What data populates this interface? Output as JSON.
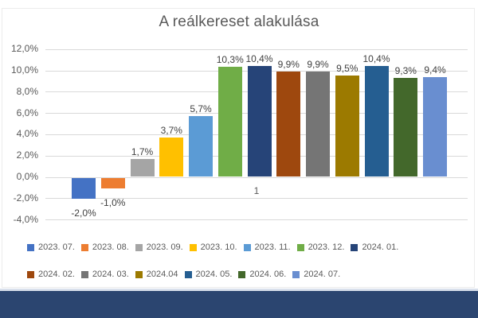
{
  "title": "A reálkereset alakulása",
  "colors": {
    "title_text": "#595959",
    "axis_text": "#595959",
    "data_label_text": "#404040",
    "gridline": "#D9D9D9",
    "footer_band": "#2B4570",
    "footer_top_line": "#D9E0EC",
    "chart_frame_border": "#ECECEC",
    "background": "#FFFFFF"
  },
  "chart_data": {
    "type": "bar",
    "title": "A reálkereset alakulása",
    "categories": [
      "1"
    ],
    "xlabel": "",
    "ylabel": "",
    "ylim": [
      -4,
      12
    ],
    "y_tick_step": 2,
    "grid": true,
    "legend_position": "bottom",
    "y_ticks": [
      {
        "value": 12,
        "label": "12,0%"
      },
      {
        "value": 10,
        "label": "10,0%"
      },
      {
        "value": 8,
        "label": "8,0%"
      },
      {
        "value": 6,
        "label": "6,0%"
      },
      {
        "value": 4,
        "label": "4,0%"
      },
      {
        "value": 2,
        "label": "2,0%"
      },
      {
        "value": 0,
        "label": "0,0%"
      },
      {
        "value": -2,
        "label": "-2,0%"
      },
      {
        "value": -4,
        "label": "-4,0%"
      }
    ],
    "series": [
      {
        "name": "2023. 07.",
        "value": -2.0,
        "label": "-2,0%",
        "color": "#4472C4"
      },
      {
        "name": "2023. 08.",
        "value": -1.0,
        "label": "-1,0%",
        "color": "#ED7D31"
      },
      {
        "name": "2023. 09.",
        "value": 1.7,
        "label": "1,7%",
        "color": "#A5A5A5"
      },
      {
        "name": "2023. 10.",
        "value": 3.7,
        "label": "3,7%",
        "color": "#FFC000"
      },
      {
        "name": "2023. 11.",
        "value": 5.7,
        "label": "5,7%",
        "color": "#5B9BD5"
      },
      {
        "name": "2023. 12.",
        "value": 10.3,
        "label": "10,3%",
        "color": "#70AD47"
      },
      {
        "name": "2024. 01.",
        "value": 10.4,
        "label": "10,4%",
        "color": "#264478"
      },
      {
        "name": "2024. 02.",
        "value": 9.9,
        "label": "9,9%",
        "color": "#9E480E"
      },
      {
        "name": "2024. 03.",
        "value": 9.9,
        "label": "9,9%",
        "color": "#757575"
      },
      {
        "name": "2024.04",
        "value": 9.5,
        "label": "9,5%",
        "color": "#9C7A00"
      },
      {
        "name": "2024. 05.",
        "value": 10.4,
        "label": "10,4%",
        "color": "#255E91"
      },
      {
        "name": "2024. 06.",
        "value": 9.3,
        "label": "9,3%",
        "color": "#43682B"
      },
      {
        "name": "2024. 07.",
        "value": 9.4,
        "label": "9,4%",
        "color": "#698ED0"
      }
    ],
    "legend_rows": [
      7,
      6
    ]
  }
}
